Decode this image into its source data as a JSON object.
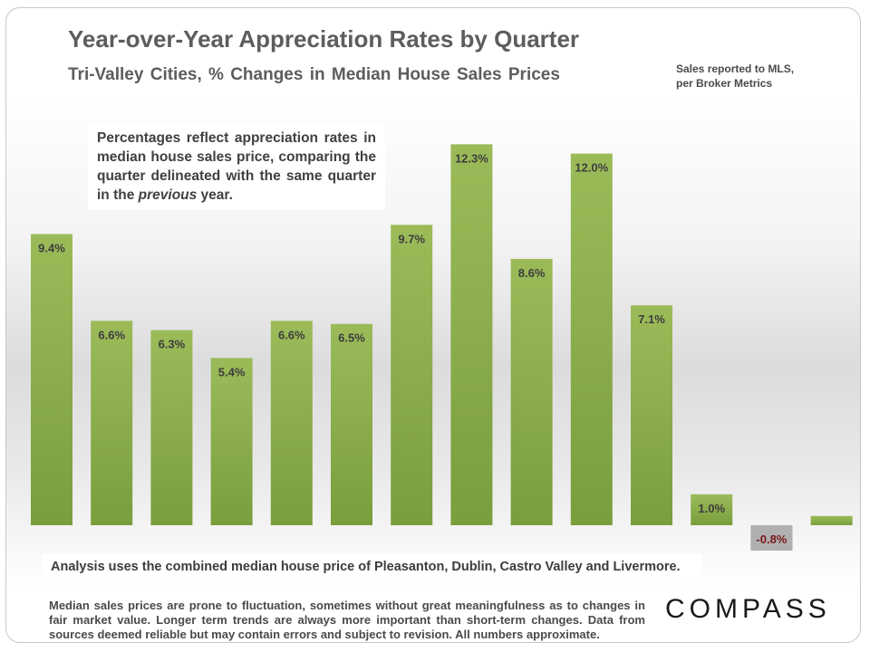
{
  "header": {
    "title": "Year-over-Year Appreciation Rates by Quarter",
    "subtitle": "Tri-Valley Cities, % Changes in Median House Sales Prices",
    "source_line1": "Sales reported to MLS,",
    "source_line2": "per Broker Metrics"
  },
  "explanation": {
    "text_main": "Percentages reflect appreciation rates in median house sales price, comparing the quarter delineated with the same quarter in the ",
    "text_italic": "previous",
    "text_end": " year."
  },
  "analysis_note": "Analysis  uses the combined median house price of Pleasanton, Dublin, Castro Valley and Livermore.",
  "disclaimer": "Median sales prices are prone to fluctuation, sometimes without great meaningfulness as to changes in fair market value. Longer term trends are always more important than short-term changes. Data from sources deemed reliable but may contain errors and subject to revision. All numbers approximate.",
  "brand": {
    "logo_text": "COMPASS"
  },
  "colors": {
    "bar_fill_top": "#9bbb59",
    "bar_fill_bottom": "#7a9e3c",
    "negative_label_bg": "#b0b0b0",
    "negative_label_text": "#7a1a1a"
  },
  "chart_data": {
    "type": "bar",
    "title": "Year-over-Year Appreciation Rates by Quarter",
    "subtitle": "Tri-Valley Cities, % Changes in Median House Sales Prices",
    "values": [
      9.4,
      6.6,
      6.3,
      5.4,
      6.6,
      6.5,
      9.7,
      12.3,
      8.6,
      12.0,
      7.1,
      1.0,
      -0.8,
      0.3
    ],
    "labels": [
      "9.4%",
      "6.6%",
      "6.3%",
      "5.4%",
      "6.6%",
      "6.5%",
      "9.7%",
      "12.3%",
      "8.6%",
      "12.0%",
      "7.1%",
      "1.0%",
      "-0.8%",
      ""
    ],
    "ylim": [
      -0.8,
      12.3
    ],
    "grid": false,
    "legend": "none"
  }
}
